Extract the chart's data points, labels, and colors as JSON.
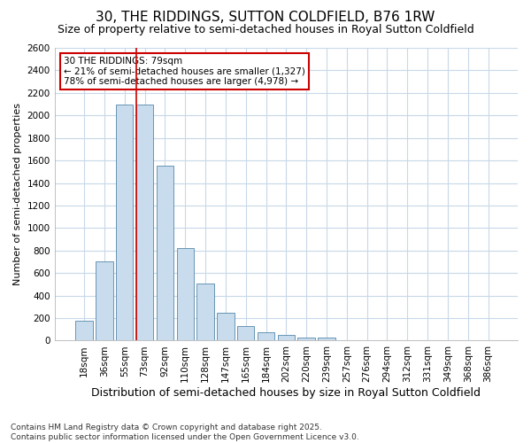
{
  "title": "30, THE RIDDINGS, SUTTON COLDFIELD, B76 1RW",
  "subtitle": "Size of property relative to semi-detached houses in Royal Sutton Coldfield",
  "xlabel": "Distribution of semi-detached houses by size in Royal Sutton Coldfield",
  "ylabel": "Number of semi-detached properties",
  "footer": "Contains HM Land Registry data © Crown copyright and database right 2025.\nContains public sector information licensed under the Open Government Licence v3.0.",
  "categories": [
    "18sqm",
    "36sqm",
    "55sqm",
    "73sqm",
    "92sqm",
    "110sqm",
    "128sqm",
    "147sqm",
    "165sqm",
    "184sqm",
    "202sqm",
    "220sqm",
    "239sqm",
    "257sqm",
    "276sqm",
    "294sqm",
    "312sqm",
    "331sqm",
    "349sqm",
    "368sqm",
    "386sqm"
  ],
  "values": [
    175,
    700,
    2100,
    2100,
    1550,
    825,
    510,
    250,
    130,
    75,
    50,
    30,
    30,
    0,
    0,
    0,
    0,
    0,
    0,
    0,
    0
  ],
  "bar_color": "#c8dced",
  "bar_edge_color": "#5588aa",
  "marker_index": 3,
  "marker_color": "#cc0000",
  "annotation_text": "30 THE RIDDINGS: 79sqm\n← 21% of semi-detached houses are smaller (1,327)\n78% of semi-detached houses are larger (4,978) →",
  "annotation_box_color": "#ffffff",
  "annotation_border_color": "#cc0000",
  "ylim": [
    0,
    2600
  ],
  "yticks": [
    0,
    200,
    400,
    600,
    800,
    1000,
    1200,
    1400,
    1600,
    1800,
    2000,
    2200,
    2400,
    2600
  ],
  "background_color": "#ffffff",
  "grid_color": "#c8d8e8",
  "title_fontsize": 11,
  "subtitle_fontsize": 9,
  "xlabel_fontsize": 9,
  "ylabel_fontsize": 8,
  "tick_fontsize": 7.5,
  "footer_fontsize": 6.5,
  "annotation_fontsize": 7.5
}
